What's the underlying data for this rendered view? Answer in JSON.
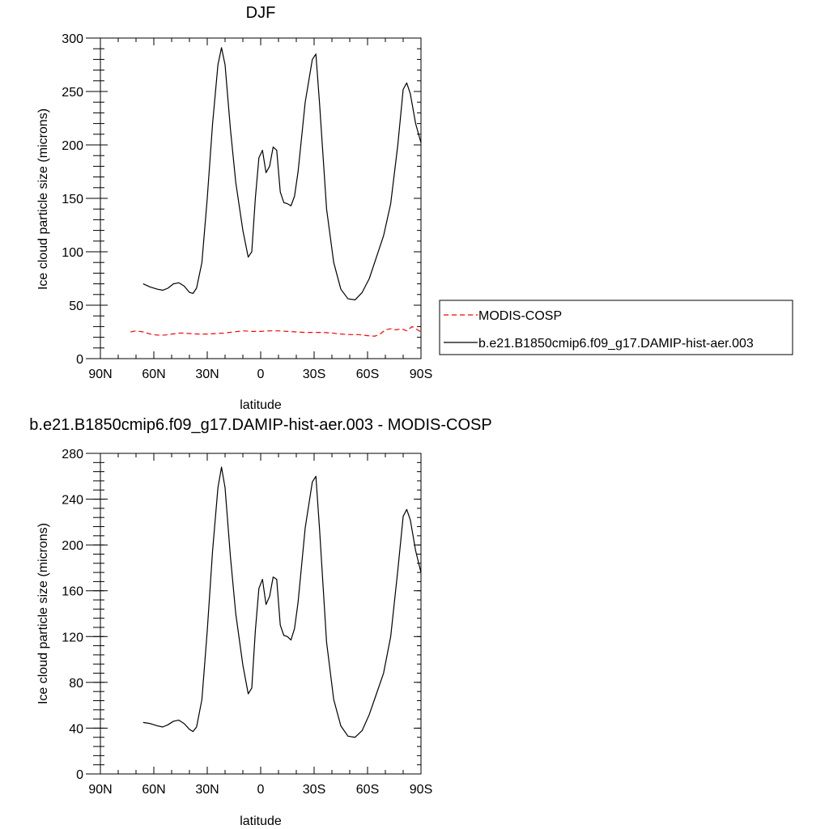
{
  "chart_data": [
    {
      "type": "line",
      "title": "DJF",
      "xlabel": "latitude",
      "ylabel": "Ice cloud particle size (microns)",
      "xlim": [
        -90,
        90
      ],
      "ylim": [
        0,
        300
      ],
      "xticks": [
        -90,
        -60,
        -30,
        0,
        30,
        60,
        90
      ],
      "xtick_labels": [
        "90N",
        "60N",
        "30N",
        "0",
        "30S",
        "60S",
        "90S"
      ],
      "yticks": [
        0,
        50,
        100,
        150,
        200,
        250,
        300
      ],
      "ytick_labels": [
        "0",
        "50",
        "100",
        "150",
        "200",
        "250",
        "300"
      ],
      "grid": false,
      "legend_position": "right",
      "series": [
        {
          "name": "MODIS-COSP",
          "color": "#ff0000",
          "dash": "dashed",
          "x": [
            -73,
            -70,
            -66,
            -62,
            -58,
            -54,
            -50,
            -45,
            -40,
            -35,
            -30,
            -25,
            -20,
            -15,
            -10,
            -5,
            0,
            5,
            10,
            15,
            20,
            25,
            30,
            35,
            40,
            45,
            50,
            55,
            60,
            64,
            67,
            70,
            73,
            76,
            79,
            82,
            85,
            88,
            90
          ],
          "y": [
            25,
            26,
            25,
            23,
            22,
            22,
            23,
            24,
            23.5,
            23,
            23,
            23.5,
            24,
            25,
            26,
            25.5,
            25.5,
            26,
            26,
            25.5,
            25,
            24.5,
            24.5,
            24.5,
            24,
            23,
            22.5,
            22.5,
            21.5,
            21,
            23,
            27,
            28,
            27,
            28,
            26,
            30,
            27,
            25
          ]
        },
        {
          "name": "b.e21.B1850cmip6.f09_g17.DAMIP-hist-aer.003",
          "color": "#000000",
          "dash": "solid",
          "x": [
            -66,
            -62,
            -58,
            -55,
            -52,
            -49,
            -46,
            -43,
            -40,
            -38,
            -36,
            -33,
            -30,
            -27,
            -24,
            -22,
            -20,
            -17,
            -14,
            -10,
            -7,
            -5,
            -3,
            -1,
            1,
            3,
            5,
            7,
            9,
            11,
            13,
            15,
            17,
            19,
            21,
            25,
            29,
            31,
            33,
            37,
            41,
            45,
            49,
            53,
            57,
            61,
            65,
            69,
            73,
            77,
            80,
            82,
            84,
            87,
            90
          ],
          "y": [
            70,
            67,
            65,
            64,
            66,
            70,
            71,
            68,
            62,
            61,
            66,
            90,
            150,
            220,
            275,
            291,
            275,
            215,
            165,
            120,
            95,
            100,
            150,
            188,
            195,
            174,
            180,
            198,
            195,
            156,
            146,
            145,
            143,
            152,
            175,
            240,
            280,
            285,
            240,
            140,
            90,
            65,
            56,
            55,
            62,
            75,
            95,
            115,
            145,
            200,
            252,
            258,
            248,
            220,
            202
          ]
        }
      ]
    },
    {
      "type": "line",
      "title": "b.e21.B1850cmip6.f09_g17.DAMIP-hist-aer.003 - MODIS-COSP",
      "xlabel": "latitude",
      "ylabel": "Ice cloud particle size (microns)",
      "xlim": [
        -90,
        90
      ],
      "ylim": [
        0,
        280
      ],
      "xticks": [
        -90,
        -60,
        -30,
        0,
        30,
        60,
        90
      ],
      "xtick_labels": [
        "90N",
        "60N",
        "30N",
        "0",
        "30S",
        "60S",
        "90S"
      ],
      "yticks": [
        0,
        40,
        80,
        120,
        160,
        200,
        240,
        280
      ],
      "ytick_labels": [
        "0",
        "40",
        "80",
        "120",
        "160",
        "200",
        "240",
        "280"
      ],
      "grid": false,
      "series": [
        {
          "color": "#000000",
          "dash": "solid",
          "x": [
            -66,
            -62,
            -58,
            -55,
            -52,
            -49,
            -46,
            -43,
            -40,
            -38,
            -36,
            -33,
            -30,
            -27,
            -24,
            -22,
            -20,
            -17,
            -14,
            -10,
            -7,
            -5,
            -3,
            -1,
            1,
            3,
            5,
            7,
            9,
            11,
            13,
            15,
            17,
            19,
            21,
            25,
            29,
            31,
            33,
            37,
            41,
            45,
            49,
            53,
            57,
            61,
            65,
            69,
            73,
            77,
            80,
            82,
            84,
            87,
            90
          ],
          "y": [
            45,
            44,
            42,
            41,
            43,
            46,
            47,
            44,
            39,
            37,
            41,
            65,
            125,
            195,
            250,
            268,
            250,
            190,
            140,
            95,
            70,
            75,
            125,
            162,
            170,
            148,
            155,
            172,
            170,
            130,
            121,
            120,
            117,
            127,
            150,
            215,
            255,
            260,
            215,
            115,
            65,
            42,
            33,
            32,
            38,
            52,
            70,
            88,
            120,
            178,
            225,
            231,
            222,
            195,
            176
          ]
        }
      ]
    }
  ]
}
